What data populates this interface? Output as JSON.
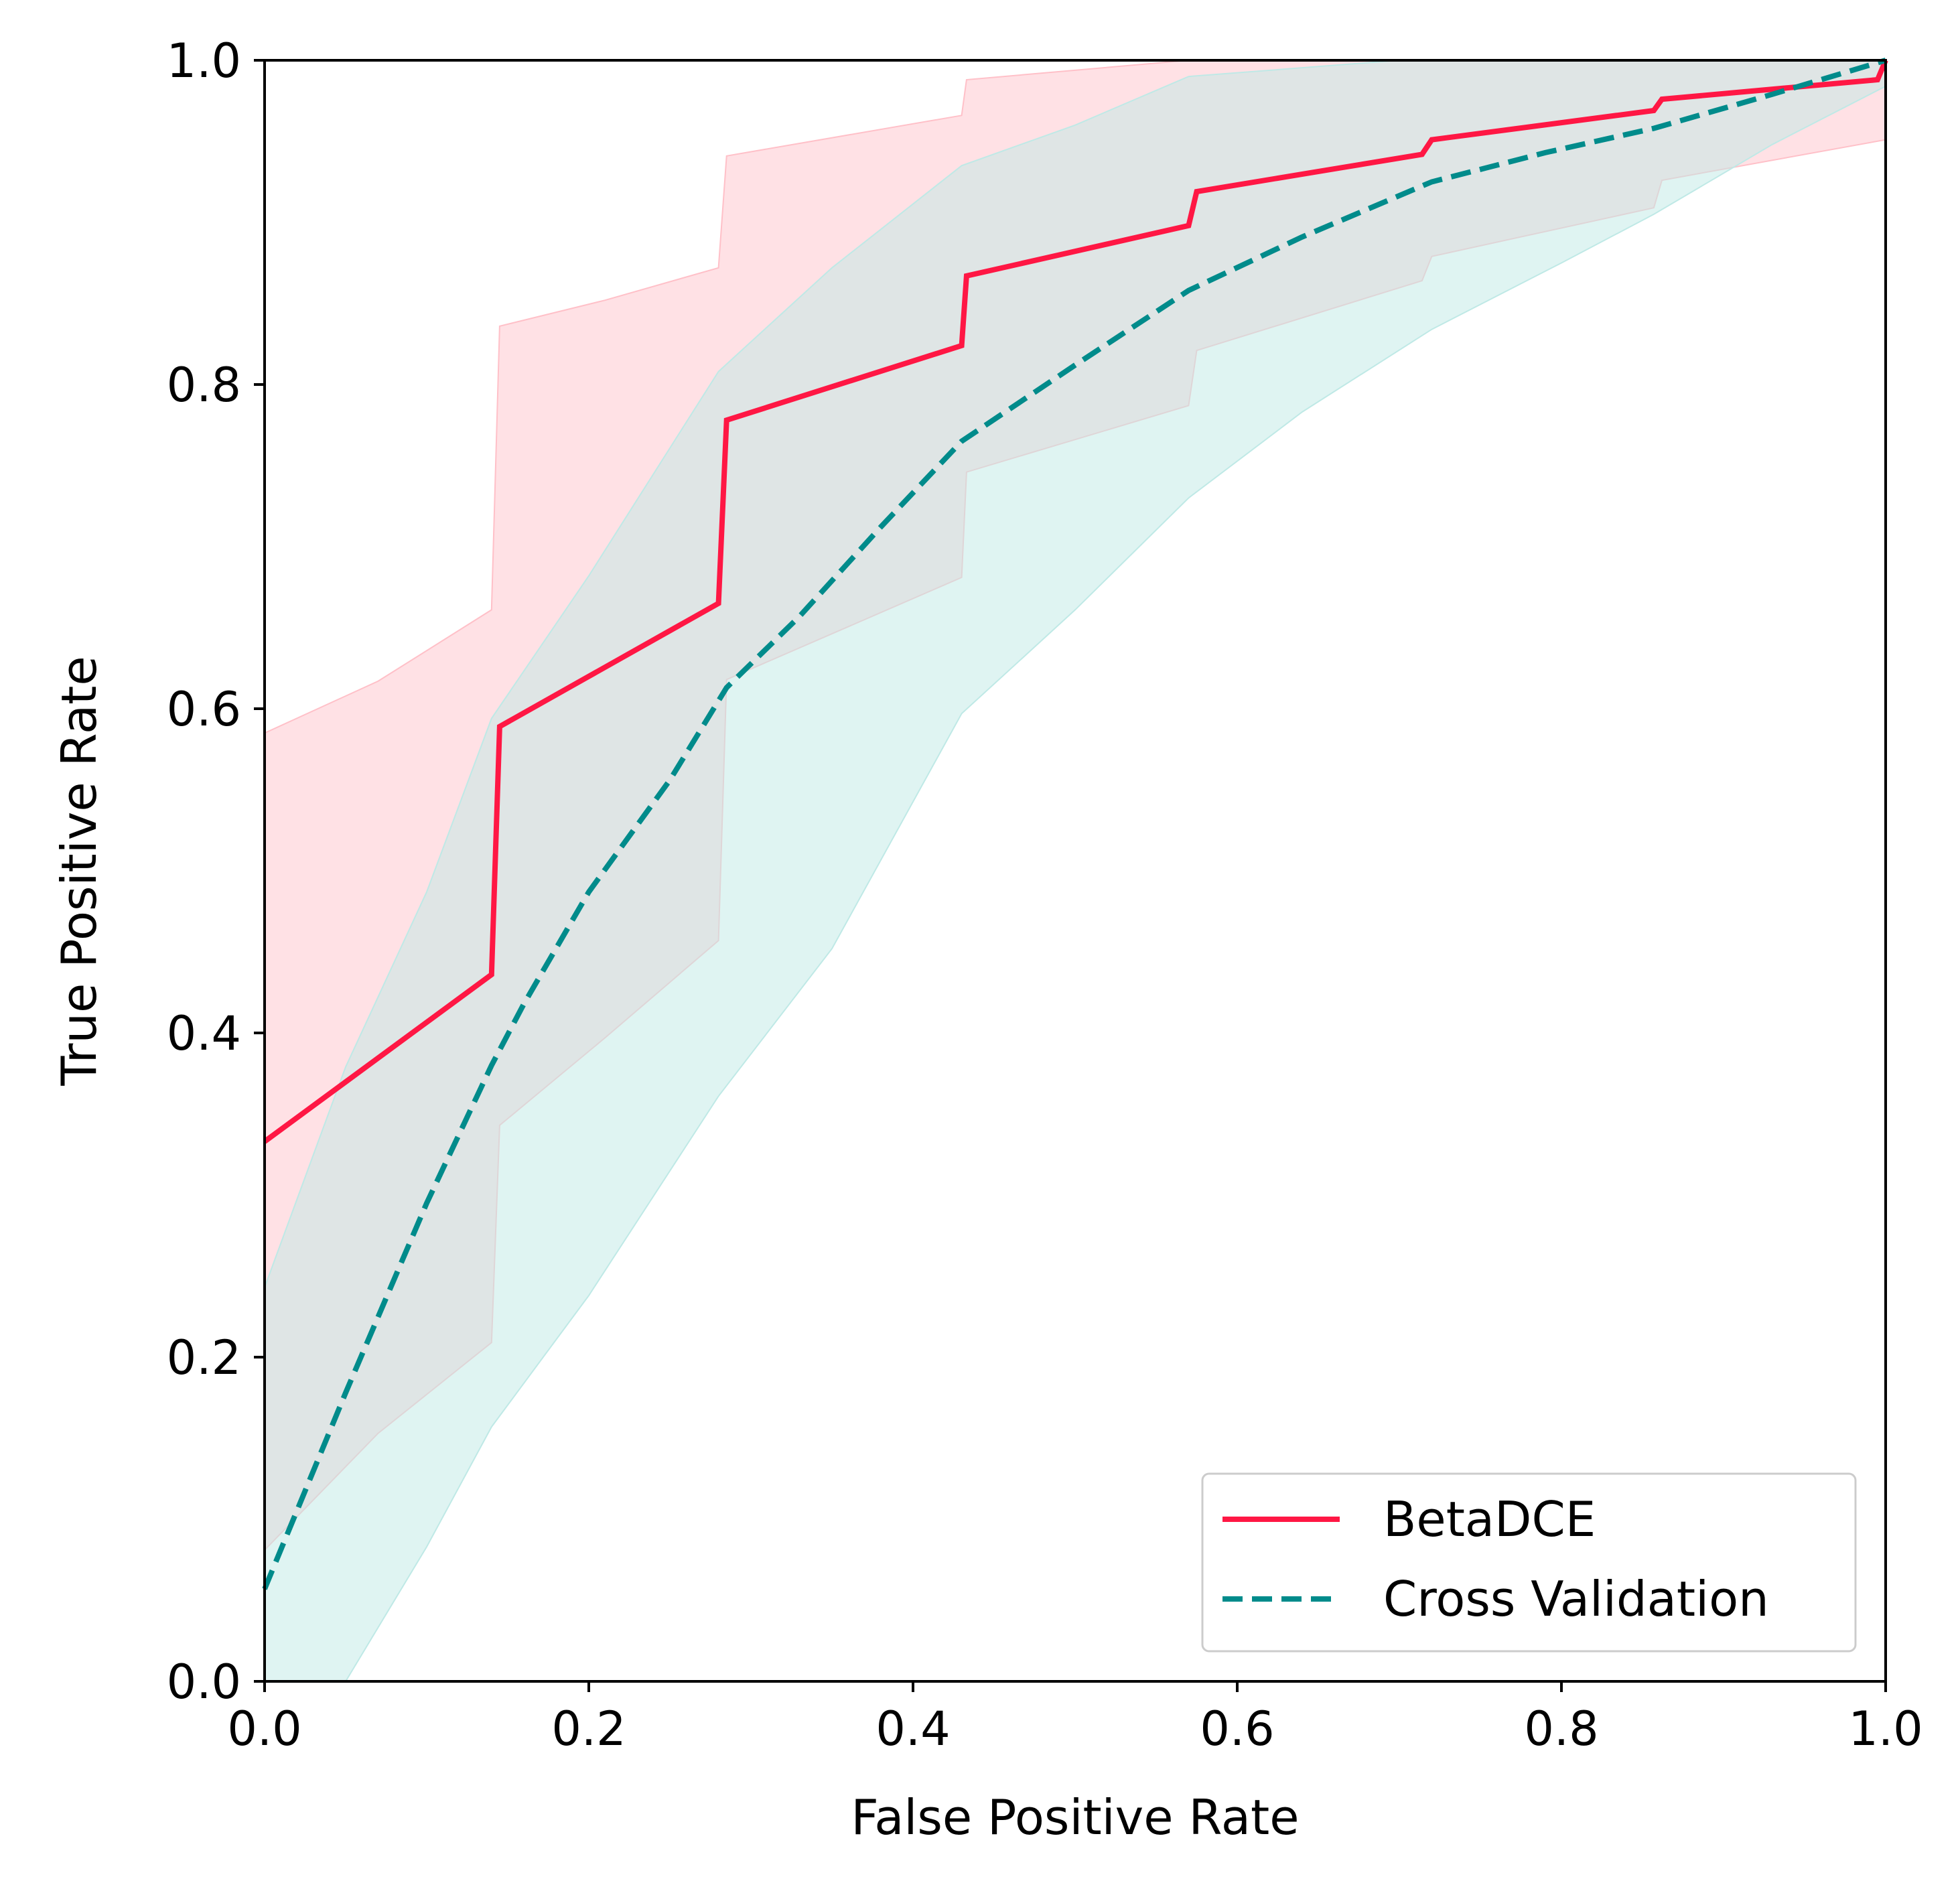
{
  "chart_data": {
    "type": "line",
    "title": "",
    "xlabel": "False Positive Rate",
    "ylabel": "True Positive Rate",
    "xlim": [
      0.0,
      1.0
    ],
    "ylim": [
      0.0,
      1.0
    ],
    "x_ticks": [
      "0.0",
      "0.2",
      "0.4",
      "0.6",
      "0.8",
      "1.0"
    ],
    "y_ticks": [
      "0.0",
      "0.2",
      "0.4",
      "0.6",
      "0.8",
      "1.0"
    ],
    "grid": false,
    "legend_position": "lower-right",
    "series": [
      {
        "name": "BetaDCE",
        "color": "#ff1744",
        "style": "solid",
        "x": [
          0.0,
          0.14,
          0.145,
          0.28,
          0.285,
          0.43,
          0.433,
          0.57,
          0.575,
          0.714,
          0.72,
          0.857,
          0.862,
          0.995,
          1.0
        ],
        "y": [
          0.333,
          0.436,
          0.589,
          0.665,
          0.778,
          0.824,
          0.867,
          0.898,
          0.919,
          0.942,
          0.951,
          0.969,
          0.976,
          0.988,
          1.0
        ],
        "band_color": "#ffc0c8",
        "band_upper": [
          [
            0.0,
            0.585
          ],
          [
            0.07,
            0.617
          ],
          [
            0.14,
            0.661
          ],
          [
            0.145,
            0.836
          ],
          [
            0.21,
            0.852
          ],
          [
            0.28,
            0.872
          ],
          [
            0.285,
            0.941
          ],
          [
            0.43,
            0.966
          ],
          [
            0.433,
            0.988
          ],
          [
            0.57,
            1.0
          ],
          [
            1.0,
            1.0
          ]
        ],
        "band_lower": [
          [
            0.0,
            0.081
          ],
          [
            0.07,
            0.153
          ],
          [
            0.14,
            0.209
          ],
          [
            0.145,
            0.343
          ],
          [
            0.21,
            0.397
          ],
          [
            0.28,
            0.457
          ],
          [
            0.285,
            0.618
          ],
          [
            0.43,
            0.681
          ],
          [
            0.433,
            0.746
          ],
          [
            0.57,
            0.787
          ],
          [
            0.575,
            0.821
          ],
          [
            0.714,
            0.864
          ],
          [
            0.72,
            0.879
          ],
          [
            0.857,
            0.909
          ],
          [
            0.862,
            0.926
          ],
          [
            1.0,
            0.951
          ]
        ]
      },
      {
        "name": "Cross Validation",
        "color": "#008b8b",
        "style": "dashed",
        "x": [
          0.0,
          0.05,
          0.1,
          0.14,
          0.16,
          0.2,
          0.25,
          0.285,
          0.33,
          0.38,
          0.43,
          0.5,
          0.57,
          0.64,
          0.72,
          0.79,
          0.857,
          0.93,
          1.0
        ],
        "y": [
          0.057,
          0.178,
          0.295,
          0.38,
          0.418,
          0.487,
          0.556,
          0.613,
          0.657,
          0.712,
          0.765,
          0.812,
          0.858,
          0.891,
          0.925,
          0.943,
          0.958,
          0.979,
          1.0
        ],
        "band_color": "#bfe9e6",
        "band_upper": [
          [
            0.0,
            0.243
          ],
          [
            0.05,
            0.379
          ],
          [
            0.1,
            0.487
          ],
          [
            0.14,
            0.594
          ],
          [
            0.2,
            0.682
          ],
          [
            0.28,
            0.808
          ],
          [
            0.35,
            0.872
          ],
          [
            0.43,
            0.935
          ],
          [
            0.5,
            0.96
          ],
          [
            0.57,
            0.99
          ],
          [
            0.7,
            1.0
          ],
          [
            1.0,
            1.0
          ]
        ],
        "band_lower": [
          [
            0.05,
            0.0
          ],
          [
            0.1,
            0.083
          ],
          [
            0.14,
            0.157
          ],
          [
            0.2,
            0.238
          ],
          [
            0.28,
            0.361
          ],
          [
            0.35,
            0.452
          ],
          [
            0.43,
            0.597
          ],
          [
            0.5,
            0.661
          ],
          [
            0.57,
            0.73
          ],
          [
            0.64,
            0.783
          ],
          [
            0.72,
            0.834
          ],
          [
            0.8,
            0.875
          ],
          [
            0.857,
            0.905
          ],
          [
            0.93,
            0.948
          ],
          [
            1.0,
            0.984
          ]
        ]
      }
    ]
  }
}
